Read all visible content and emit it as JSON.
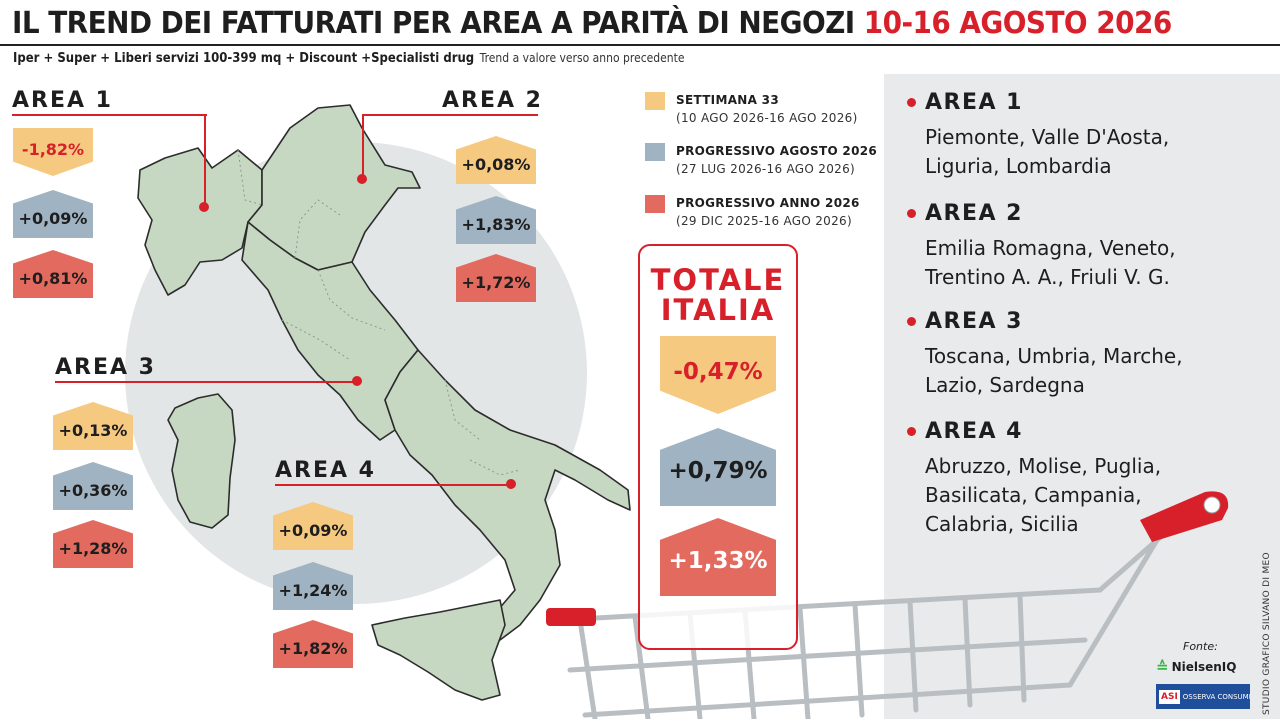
{
  "header": {
    "title_main": "IL TREND DEI FATTURATI PER AREA A PARITÀ DI NEGOZI",
    "title_date": "10-16 AGOSTO 2026",
    "subtitle": "Iper + Super + Liberi servizi 100-399 mq + Discount +Specialisti drug",
    "subtitle_note": "Trend a valore verso anno precedente"
  },
  "colors": {
    "week": "#f6c981",
    "month": "#9fb3c2",
    "year": "#e26a5e",
    "accent": "#d7202a",
    "panel": "#e8eaeb",
    "map": "#c6d8c2"
  },
  "legend": [
    {
      "title": "SETTIMANA 33",
      "sub": "(10 AGO 2026-16 AGO 2026)"
    },
    {
      "title": "PROGRESSIVO AGOSTO 2026",
      "sub": "(27 LUG 2026-16 AGO 2026)"
    },
    {
      "title": "PROGRESSIVO ANNO 2026",
      "sub": "(29 DIC 2025-16 AGO 2026)"
    }
  ],
  "chart_data": {
    "type": "table",
    "series_labels": [
      "SETTIMANA 33",
      "PROGRESSIVO AGOSTO 2026",
      "PROGRESSIVO ANNO 2026"
    ],
    "areas": [
      {
        "name": "AREA 1",
        "values": [
          -1.82,
          0.09,
          0.81
        ],
        "labels": [
          "-1,82%",
          "+0,09%",
          "+0,81%"
        ]
      },
      {
        "name": "AREA 2",
        "values": [
          0.08,
          1.83,
          1.72
        ],
        "labels": [
          "+0,08%",
          "+1,83%",
          "+1,72%"
        ]
      },
      {
        "name": "AREA 3",
        "values": [
          0.13,
          0.36,
          1.28
        ],
        "labels": [
          "+0,13%",
          "+0,36%",
          "+1,28%"
        ]
      },
      {
        "name": "AREA 4",
        "values": [
          0.09,
          1.24,
          1.82
        ],
        "labels": [
          "+0,09%",
          "+1,24%",
          "+1,82%"
        ]
      }
    ],
    "totale": {
      "title_line1": "TOTALE",
      "title_line2": "ITALIA",
      "values": [
        -0.47,
        0.79,
        1.33
      ],
      "labels": [
        "-0,47%",
        "+0,79%",
        "+1,33%"
      ]
    }
  },
  "panel": [
    {
      "name": "AREA 1",
      "lines": [
        "Piemonte, Valle D'Aosta,",
        "Liguria, Lombardia"
      ]
    },
    {
      "name": "AREA 2",
      "lines": [
        "Emilia Romagna, Veneto,",
        "Trentino A. A., Friuli V. G."
      ]
    },
    {
      "name": "AREA 3",
      "lines": [
        "Toscana, Umbria, Marche,",
        "Lazio, Sardegna"
      ]
    },
    {
      "name": "AREA 4",
      "lines": [
        "Abruzzo, Molise, Puglia,",
        "Basilicata, Campania,",
        "Calabria, Sicilia"
      ]
    }
  ],
  "sources": {
    "label": "Fonte:",
    "logo1": "NielsenIQ",
    "logo2": "OSSERVA CONSUMI",
    "logo2_mark": "ASI"
  },
  "credit": "STUDIO GRAFICO SILVANO DI MEO"
}
